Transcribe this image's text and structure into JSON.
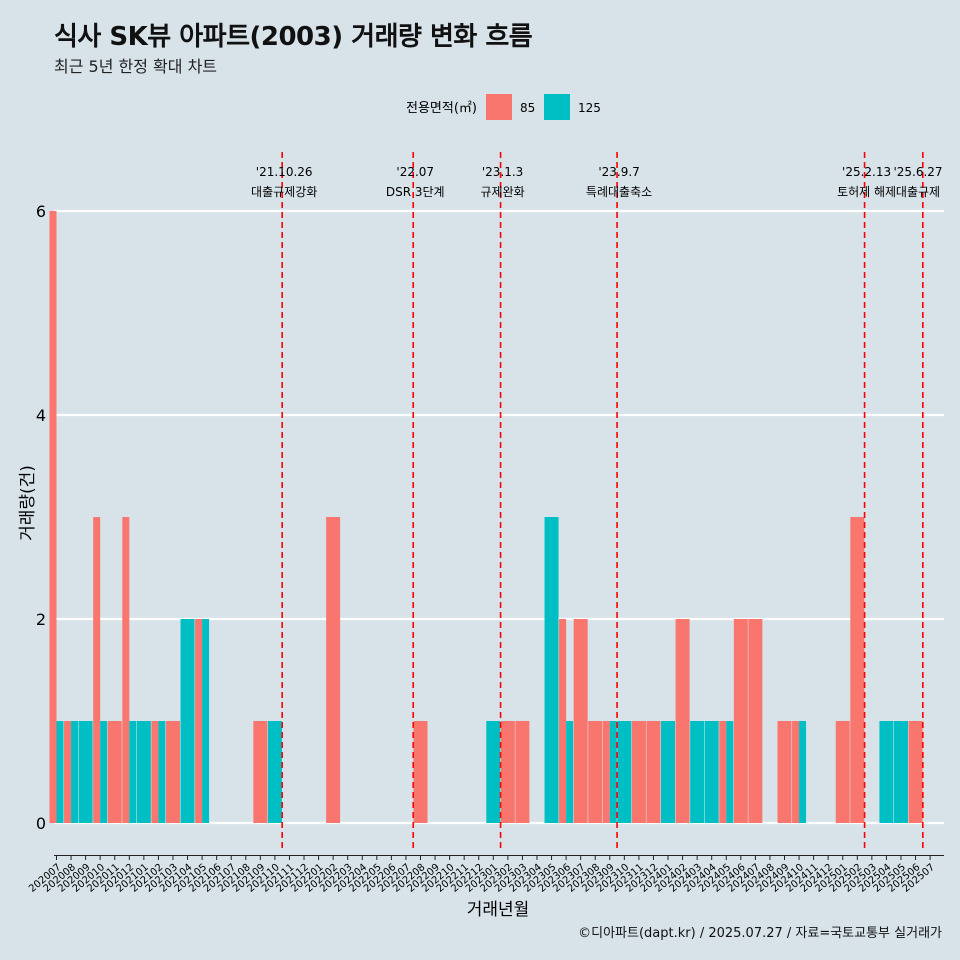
{
  "header": {
    "title": "식사 SK뷰 아파트(2003) 거래량 변화 흐름",
    "subtitle": "최근 5년 한정 확대 차트"
  },
  "caption": "©디아파트(dapt.kr) / 2025.07.27 / 자료=국토교통부 실거래가",
  "colors": {
    "background": "#d7e3e9",
    "series_85": "#f8766d",
    "series_125": "#00bfc4",
    "gridline": "#ffffff",
    "event_line": "#ff0000"
  },
  "chart_data": {
    "type": "bar",
    "title": "식사 SK뷰 아파트(2003) 거래량 변화 흐름",
    "xlabel": "거래년월",
    "ylabel": "거래량(건)",
    "ylim": [
      0,
      6
    ],
    "yticks": [
      0,
      2,
      4,
      6
    ],
    "grid": true,
    "legend": {
      "title": "전용면적(㎡)",
      "position": "top"
    },
    "categories": [
      "202007",
      "202008",
      "202009",
      "202010",
      "202011",
      "202012",
      "202101",
      "202102",
      "202103",
      "202104",
      "202105",
      "202106",
      "202107",
      "202108",
      "202109",
      "202110",
      "202111",
      "202112",
      "202201",
      "202202",
      "202203",
      "202204",
      "202205",
      "202206",
      "202207",
      "202208",
      "202209",
      "202210",
      "202211",
      "202212",
      "202301",
      "202302",
      "202303",
      "202304",
      "202305",
      "202306",
      "202307",
      "202308",
      "202309",
      "202310",
      "202311",
      "202312",
      "202401",
      "202402",
      "202403",
      "202404",
      "202405",
      "202406",
      "202407",
      "202408",
      "202409",
      "202410",
      "202411",
      "202412",
      "202501",
      "202502",
      "202503",
      "202504",
      "202505",
      "202506",
      "202507"
    ],
    "series": [
      {
        "name": "85",
        "color": "#f8766d",
        "values": [
          6,
          1,
          0,
          3,
          1,
          3,
          0,
          1,
          1,
          0,
          2,
          0,
          0,
          0,
          1,
          0,
          0,
          0,
          0,
          3,
          0,
          0,
          0,
          0,
          0,
          1,
          0,
          0,
          0,
          0,
          0,
          1,
          1,
          0,
          0,
          2,
          2,
          1,
          1,
          0,
          1,
          1,
          0,
          2,
          0,
          0,
          1,
          2,
          2,
          0,
          1,
          1,
          0,
          0,
          1,
          3,
          0,
          0,
          0,
          1,
          0
        ]
      },
      {
        "name": "125",
        "color": "#00bfc4",
        "values": [
          1,
          1,
          1,
          1,
          0,
          1,
          1,
          1,
          0,
          2,
          2,
          0,
          0,
          0,
          0,
          1,
          0,
          0,
          0,
          0,
          0,
          0,
          0,
          0,
          0,
          0,
          0,
          0,
          0,
          0,
          1,
          0,
          0,
          0,
          3,
          1,
          0,
          0,
          1,
          1,
          0,
          0,
          1,
          0,
          1,
          1,
          1,
          0,
          0,
          0,
          0,
          1,
          0,
          0,
          0,
          0,
          0,
          1,
          1,
          0,
          0
        ]
      }
    ],
    "annotations": [
      {
        "date": "'21.10.26",
        "label": "대출규제강화",
        "x_index": 15.5
      },
      {
        "date": "'22.07",
        "label": "DSR 3단계",
        "x_index": 24.5
      },
      {
        "date": "'23.1.3",
        "label": "규제완화",
        "x_index": 30.5
      },
      {
        "date": "'23.9.7",
        "label": "특례대출축소",
        "x_index": 38.5
      },
      {
        "date": "'25.2.13",
        "label": "토허제 해제",
        "x_index": 55.5
      },
      {
        "date": "'25.6.27",
        "label": "대출규제",
        "x_index": 59.5
      }
    ]
  }
}
